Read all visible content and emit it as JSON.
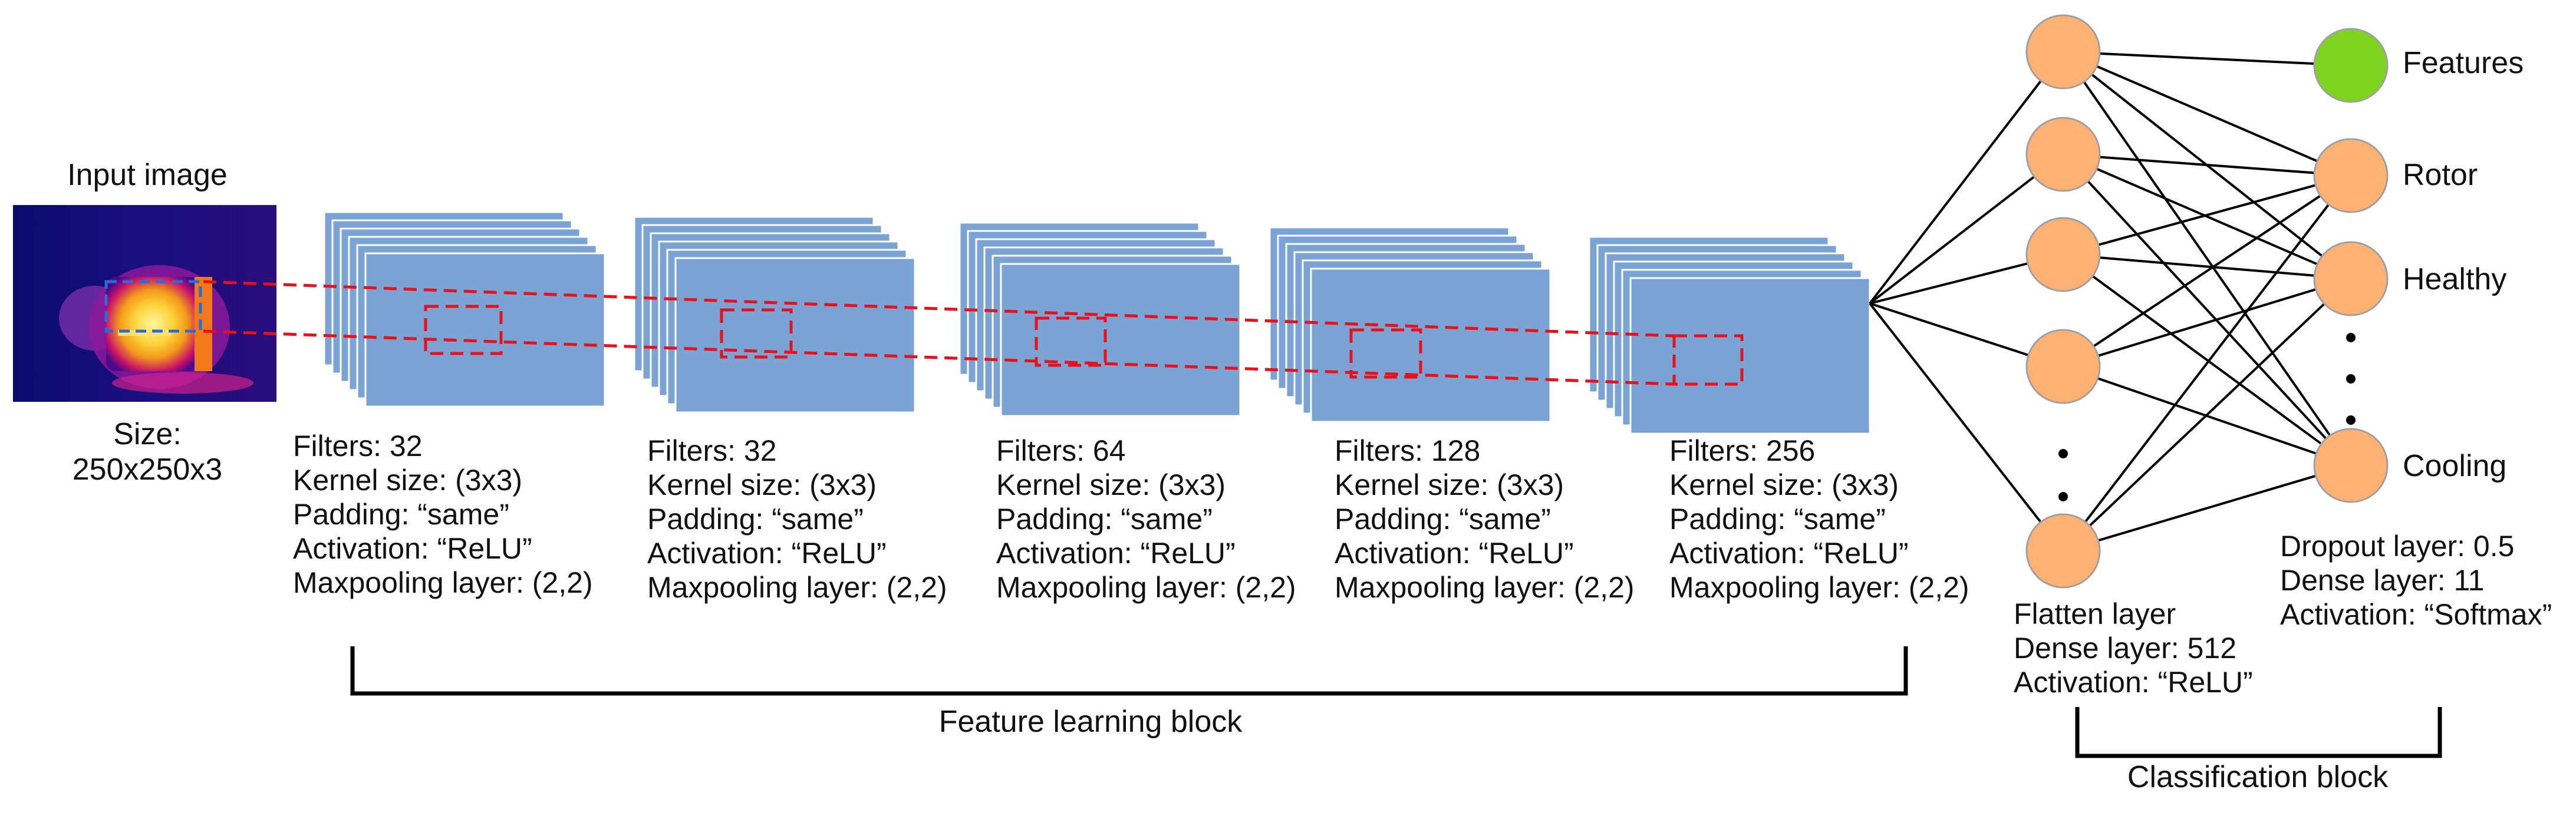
{
  "input": {
    "title": "Input image",
    "size_label": "Size:",
    "size_value": "250x250x3"
  },
  "conv_layers": [
    {
      "filters": "Filters: 32",
      "kernel": "Kernel size: (3x3)",
      "padding": "Padding: “same”",
      "activation": "Activation: “ReLU”",
      "pool": "Maxpooling layer: (2,2)"
    },
    {
      "filters": "Filters: 32",
      "kernel": "Kernel size: (3x3)",
      "padding": "Padding: “same”",
      "activation": "Activation: “ReLU”",
      "pool": "Maxpooling layer: (2,2)"
    },
    {
      "filters": "Filters: 64",
      "kernel": "Kernel size: (3x3)",
      "padding": "Padding: “same”",
      "activation": "Activation: “ReLU”",
      "pool": "Maxpooling layer: (2,2)"
    },
    {
      "filters": "Filters: 128",
      "kernel": "Kernel size: (3x3)",
      "padding": "Padding: “same”",
      "activation": "Activation: “ReLU”",
      "pool": "Maxpooling layer: (2,2)"
    },
    {
      "filters": "Filters: 256",
      "kernel": "Kernel size: (3x3)",
      "padding": "Padding: “same”",
      "activation": "Activation: “ReLU”",
      "pool": "Maxpooling layer: (2,2)"
    }
  ],
  "flatten": {
    "line1": "Flatten layer",
    "line2": "Dense layer: 512",
    "line3": "Activation: “ReLU”"
  },
  "output": {
    "line1": "Dropout layer: 0.5",
    "line2": "Dense layer: 11",
    "line3": "Activation: “Softmax”",
    "classes": [
      "Features",
      "Rotor",
      "Healthy",
      "Cooling"
    ]
  },
  "blocks": {
    "feature": "Feature learning block",
    "classification": "Classification block"
  },
  "colors": {
    "feature_map": "#7ba3d3",
    "neuron": "#fdb173",
    "neuron_stroke": "#a0a0a0",
    "highlight_neuron": "#7ed321",
    "dashed": "#e8101a"
  }
}
